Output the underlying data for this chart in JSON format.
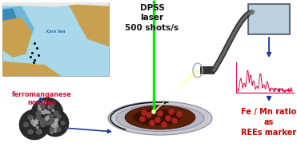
{
  "bg_color": "#ffffff",
  "text_dpss": "DPSS\nlaser\n500 shots/s",
  "text_ferro": "ferromanganese\nnodules",
  "text_ratio": "Fe / Mn ratio\nas\nREEs marker",
  "map_colors": {
    "ocean_light": "#a8d8ea",
    "ocean_mid": "#6db8d8",
    "ocean_dark": "#3a8ab8",
    "land_brown": "#c8a050",
    "land_dark": "#b08030"
  },
  "arrow_color": "#1a3a9c",
  "laser_color": "#00ee00",
  "nodule_dark": "#2a2a2a",
  "nodule_mid": "#555555",
  "nodule_light": "#aaaaaa",
  "plate_outer": "#c8c8d0",
  "plate_rim": "#a0a0a8",
  "sample_brown": "#5a2008",
  "sample_dark": "#3a1205",
  "sample_spot": "#aa2222",
  "spectrum_color": "#dd1144",
  "detector_fill": "#b0c8da",
  "detector_border": "#555566",
  "fiber_dark": "#333333",
  "fiber_mid": "#666666",
  "beam_fill": "#ffffa8"
}
